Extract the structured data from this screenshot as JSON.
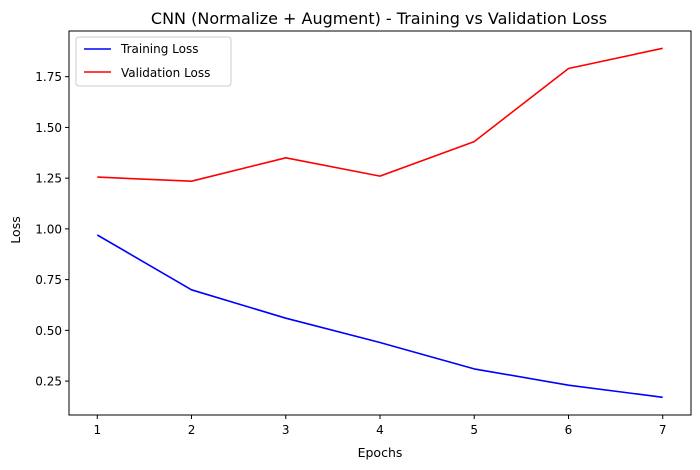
{
  "chart_data": {
    "type": "line",
    "title": "CNN (Normalize + Augment) - Training vs Validation Loss",
    "xlabel": "Epochs",
    "ylabel": "Loss",
    "x": [
      1,
      2,
      3,
      4,
      5,
      6,
      7
    ],
    "xlim": [
      0.7,
      7.3
    ],
    "ylim": [
      0.083,
      1.975
    ],
    "xticks": [
      1,
      2,
      3,
      4,
      5,
      6,
      7
    ],
    "yticks": [
      0.25,
      0.5,
      0.75,
      1.0,
      1.25,
      1.5,
      1.75
    ],
    "ytick_labels": [
      "0.25",
      "0.50",
      "0.75",
      "1.00",
      "1.25",
      "1.50",
      "1.75"
    ],
    "grid": false,
    "legend_position": "top-left",
    "series": [
      {
        "name": "Training Loss",
        "color": "#0000ff",
        "values": [
          0.97,
          0.7,
          0.56,
          0.44,
          0.31,
          0.23,
          0.17
        ]
      },
      {
        "name": "Validation Loss",
        "color": "#ff0000",
        "values": [
          1.255,
          1.235,
          1.35,
          1.26,
          1.43,
          1.79,
          1.89
        ]
      }
    ]
  }
}
